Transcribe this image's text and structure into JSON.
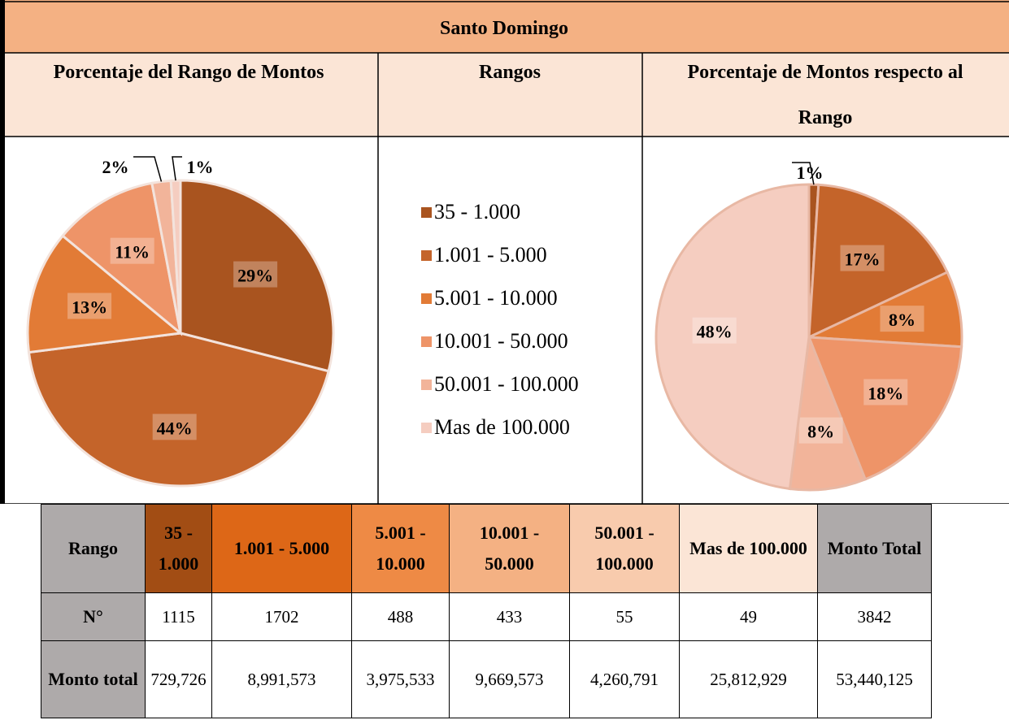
{
  "header": {
    "title": "Santo Domingo",
    "columns": [
      "Porcentaje del Rango de Montos",
      "Rangos",
      "Porcentaje de Montos respecto al Rango"
    ]
  },
  "pies": [
    {
      "type": "pie",
      "values": [
        29,
        44,
        13,
        11,
        2,
        1
      ],
      "value_labels": [
        "29%",
        "44%",
        "13%",
        "11%",
        "2%",
        "1%"
      ]
    },
    {
      "type": "pie",
      "values": [
        1,
        17,
        8,
        18,
        8,
        48
      ],
      "value_labels": [
        "1%",
        "17%",
        "8%",
        "18%",
        "8%",
        "48%"
      ]
    }
  ],
  "legend": {
    "labels": [
      "35 - 1.000",
      "1.001 - 5.000",
      "5.001 - 10.000",
      "10.001 - 50.000",
      "50.001 - 100.000",
      "Mas de 100.000"
    ],
    "colors": [
      "#a9541f",
      "#c4642a",
      "#e27b36",
      "#ee9468",
      "#f2b49a",
      "#f5cdc0"
    ]
  },
  "table": {
    "header": [
      "Rango",
      "35 - 1.000",
      "1.001 - 5.000",
      "5.001 - 10.000",
      "10.001 - 50.000",
      "50.001 - 100.000",
      "Mas de 100.000",
      "Monto Total"
    ],
    "header_colors": [
      "#aeaaaa",
      "#a24d14",
      "#dd6717",
      "#ee8a45",
      "#f4b183",
      "#f8cbad",
      "#fbe5d6",
      "#aeaaaa"
    ],
    "rows": [
      [
        "N°",
        "1115",
        "1702",
        "488",
        "433",
        "55",
        "49",
        "3842"
      ],
      [
        "Monto total",
        "729,726",
        "8,991,573",
        "3,975,533",
        "9,669,573",
        "4,260,791",
        "25,812,929",
        "53,440,125"
      ]
    ]
  }
}
